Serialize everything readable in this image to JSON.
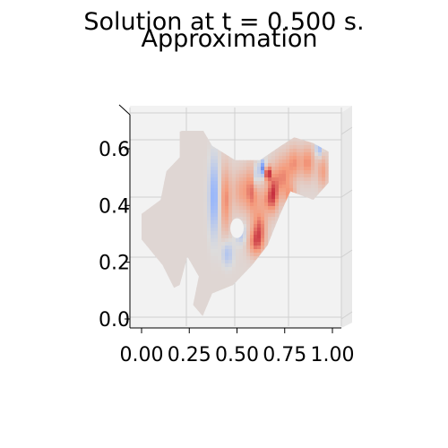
{
  "figure": {
    "title": "Solution at t = 0.500 s.",
    "subtitle": "Approximation"
  },
  "chart_data": {
    "type": "heatmap",
    "title": "Solution at t = 0.500 s.",
    "subtitle": "Approximation",
    "xlabel": "",
    "ylabel": "",
    "x_ticks": [
      "0.00",
      "0.25",
      "0.50",
      "0.75",
      "1.00"
    ],
    "y_ticks": [
      "0.0",
      "0.2",
      "0.4",
      "0.6"
    ],
    "x_tick_values": [
      0.0,
      0.25,
      0.5,
      0.75,
      1.0
    ],
    "y_tick_values": [
      0.0,
      0.2,
      0.4,
      0.6
    ],
    "xlim": [
      -0.05,
      1.1
    ],
    "ylim": [
      -0.02,
      0.72
    ],
    "view": "3d-surface-top",
    "colormap": "coolwarm",
    "background_color": "#f2f2f2",
    "grid": true,
    "domain_outline": [
      [
        0.2,
        0.66
      ],
      [
        0.3,
        0.69
      ],
      [
        0.37,
        0.61
      ],
      [
        0.49,
        0.56
      ],
      [
        0.62,
        0.56
      ],
      [
        0.73,
        0.61
      ],
      [
        0.8,
        0.64
      ],
      [
        0.9,
        0.62
      ],
      [
        0.98,
        0.59
      ],
      [
        0.98,
        0.48
      ],
      [
        0.9,
        0.42
      ],
      [
        0.78,
        0.45
      ],
      [
        0.72,
        0.36
      ],
      [
        0.66,
        0.26
      ],
      [
        0.58,
        0.19
      ],
      [
        0.48,
        0.12
      ],
      [
        0.37,
        0.09
      ],
      [
        0.32,
        0.01
      ],
      [
        0.27,
        0.05
      ],
      [
        0.3,
        0.15
      ],
      [
        0.24,
        0.22
      ],
      [
        0.2,
        0.12
      ],
      [
        0.17,
        0.11
      ],
      [
        0.11,
        0.19
      ],
      [
        0.0,
        0.28
      ],
      [
        0.0,
        0.37
      ],
      [
        0.1,
        0.42
      ],
      [
        0.13,
        0.52
      ],
      [
        0.2,
        0.57
      ]
    ],
    "hole": {
      "cx": 0.5,
      "cy": 0.32,
      "r": 0.035
    },
    "field_baseline": 0.05,
    "field_range": [
      -1,
      1
    ],
    "features": [
      {
        "x": 0.38,
        "y": 0.43,
        "value": -0.55,
        "sx": 0.018,
        "sy": 0.09
      },
      {
        "x": 0.44,
        "y": 0.42,
        "value": 0.5,
        "sx": 0.02,
        "sy": 0.08
      },
      {
        "x": 0.52,
        "y": 0.45,
        "value": 0.35,
        "sx": 0.03,
        "sy": 0.05
      },
      {
        "x": 0.58,
        "y": 0.45,
        "value": 0.55,
        "sx": 0.025,
        "sy": 0.06
      },
      {
        "x": 0.6,
        "y": 0.5,
        "value": -0.45,
        "sx": 0.012,
        "sy": 0.03
      },
      {
        "x": 0.635,
        "y": 0.53,
        "value": -0.8,
        "sx": 0.012,
        "sy": 0.02
      },
      {
        "x": 0.66,
        "y": 0.515,
        "value": 0.95,
        "sx": 0.012,
        "sy": 0.018
      },
      {
        "x": 0.69,
        "y": 0.45,
        "value": 0.55,
        "sx": 0.02,
        "sy": 0.05
      },
      {
        "x": 0.66,
        "y": 0.42,
        "value": 0.4,
        "sx": 0.03,
        "sy": 0.035
      },
      {
        "x": 0.62,
        "y": 0.33,
        "value": 0.5,
        "sx": 0.025,
        "sy": 0.04
      },
      {
        "x": 0.6,
        "y": 0.27,
        "value": 0.6,
        "sx": 0.03,
        "sy": 0.035
      },
      {
        "x": 0.52,
        "y": 0.3,
        "value": -0.3,
        "sx": 0.02,
        "sy": 0.025
      },
      {
        "x": 0.45,
        "y": 0.23,
        "value": -0.35,
        "sx": 0.02,
        "sy": 0.03
      },
      {
        "x": 0.74,
        "y": 0.5,
        "value": 0.5,
        "sx": 0.03,
        "sy": 0.05
      },
      {
        "x": 0.8,
        "y": 0.55,
        "value": 0.45,
        "sx": 0.025,
        "sy": 0.04
      },
      {
        "x": 0.87,
        "y": 0.55,
        "value": 0.5,
        "sx": 0.025,
        "sy": 0.04
      },
      {
        "x": 0.93,
        "y": 0.6,
        "value": -0.45,
        "sx": 0.012,
        "sy": 0.02
      },
      {
        "x": 0.95,
        "y": 0.52,
        "value": 0.4,
        "sx": 0.02,
        "sy": 0.04
      },
      {
        "x": 0.78,
        "y": 0.43,
        "value": 0.4,
        "sx": 0.02,
        "sy": 0.03
      }
    ]
  }
}
